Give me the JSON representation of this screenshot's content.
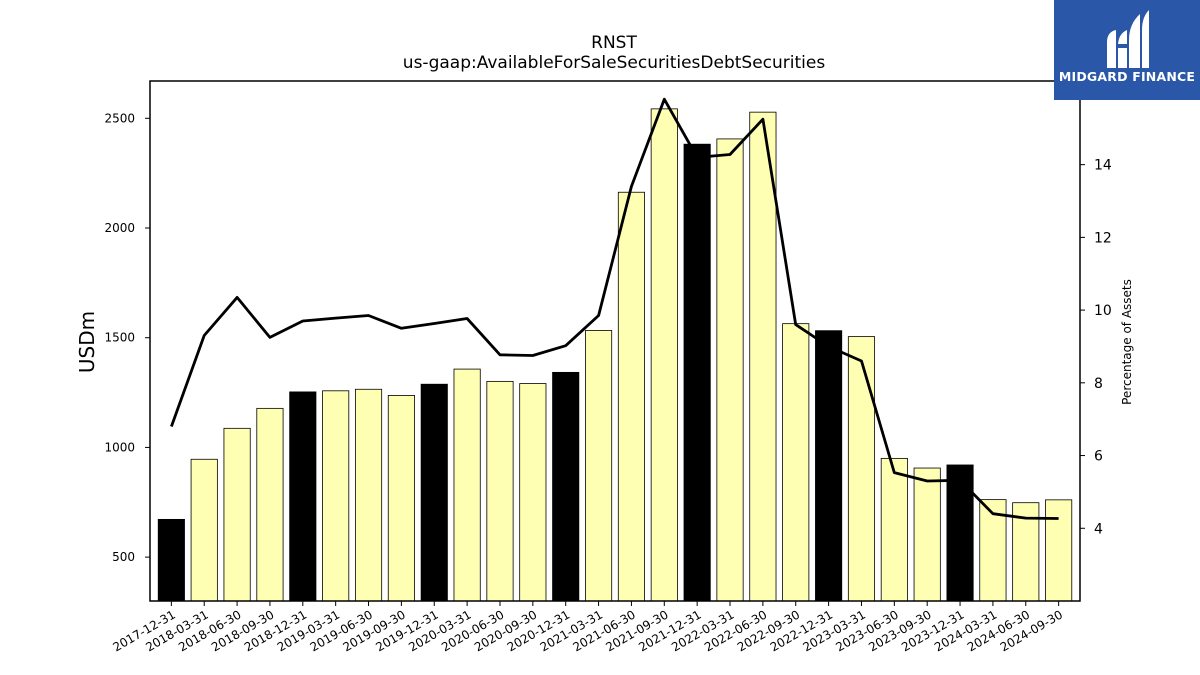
{
  "chart_data": {
    "type": "bar",
    "title": "RNST",
    "subtitle": "us-gaap:AvailableForSaleSecuritiesDebtSecurities",
    "ylabel": "USDm",
    "y2label": "Percentage of Assets",
    "ylim": [
      300,
      2670
    ],
    "y2lim": [
      2.0,
      16.3
    ],
    "yticks": [
      500,
      1000,
      1500,
      2000,
      2500
    ],
    "y2ticks": [
      4,
      6,
      8,
      10,
      12,
      14
    ],
    "categories": [
      "2017-12-31",
      "2018-03-31",
      "2018-06-30",
      "2018-09-30",
      "2018-12-31",
      "2019-03-31",
      "2019-06-30",
      "2019-09-30",
      "2019-12-31",
      "2020-03-31",
      "2020-06-30",
      "2020-09-30",
      "2020-12-31",
      "2021-03-31",
      "2021-06-30",
      "2021-09-30",
      "2021-12-31",
      "2022-03-31",
      "2022-06-30",
      "2022-09-30",
      "2022-12-31",
      "2023-03-31",
      "2023-06-30",
      "2023-09-30",
      "2023-12-31",
      "2024-03-31",
      "2024-06-30",
      "2024-09-30"
    ],
    "series": [
      {
        "type": "bar",
        "values": [
          672,
          946,
          1087,
          1178,
          1253,
          1258,
          1265,
          1237,
          1288,
          1357,
          1301,
          1291,
          1342,
          1533,
          2163,
          2543,
          2382,
          2406,
          2528,
          1564,
          1532,
          1505,
          950,
          906,
          920,
          762,
          748,
          761
        ],
        "year_end": [
          true,
          false,
          false,
          false,
          true,
          false,
          false,
          false,
          true,
          false,
          false,
          false,
          true,
          false,
          false,
          false,
          true,
          false,
          false,
          false,
          true,
          false,
          false,
          false,
          true,
          false,
          false,
          false
        ]
      },
      {
        "type": "line",
        "axis": "right",
        "values": [
          6.8,
          9.3,
          10.35,
          9.25,
          9.7,
          9.78,
          9.85,
          9.5,
          9.63,
          9.77,
          8.77,
          8.75,
          9.02,
          9.85,
          13.4,
          15.8,
          14.2,
          14.28,
          15.25,
          9.6,
          9.0,
          8.6,
          5.53,
          5.3,
          5.32,
          4.4,
          4.28,
          4.27
        ]
      }
    ],
    "colors": {
      "bar_regular": "#ffffb3",
      "bar_year_end": "#000000",
      "line": "#000000"
    },
    "grid": false
  },
  "logo": {
    "text": "MIDGARD FINANCE",
    "background": "#2b57a8"
  }
}
